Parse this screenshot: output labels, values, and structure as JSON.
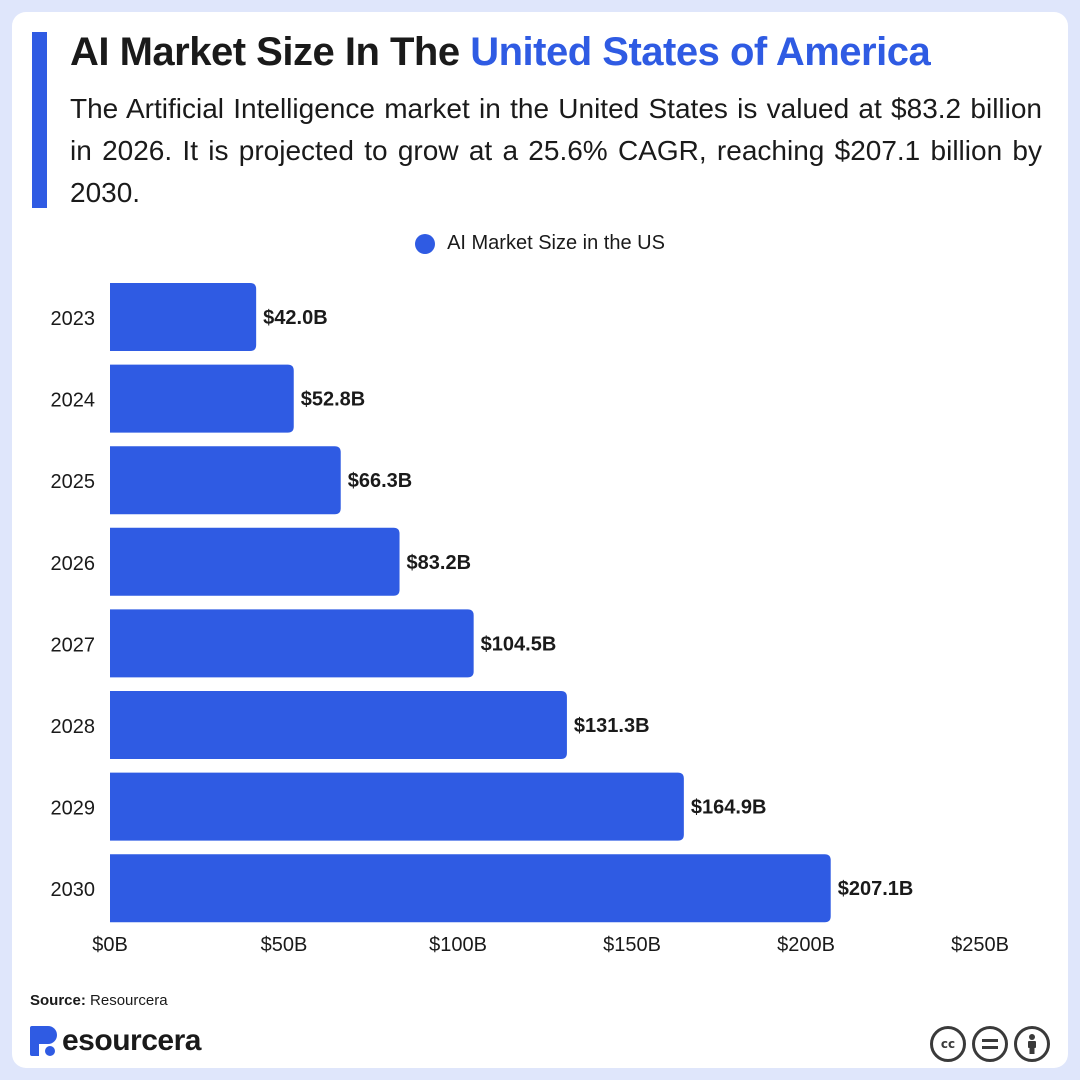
{
  "header": {
    "title_prefix": "AI Market Size In The ",
    "title_highlight": "United States of America",
    "subtitle": "The Artificial Intelligence market in the United States is valued at $83.2 billion in 2026. It is projected to grow at a 25.6% CAGR, reaching $207.1 billion by 2030."
  },
  "colors": {
    "accent": "#2f5be3",
    "bar": "#2f5be3",
    "text": "#1a1a1a"
  },
  "chart_data": {
    "type": "bar",
    "orientation": "horizontal",
    "categories": [
      "2023",
      "2024",
      "2025",
      "2026",
      "2027",
      "2028",
      "2029",
      "2030"
    ],
    "series": [
      {
        "name": "AI Market Size in the US",
        "values": [
          42.0,
          52.8,
          66.3,
          83.2,
          104.5,
          131.3,
          164.9,
          207.1
        ],
        "labels": [
          "$42.0B",
          "$52.8B",
          "$66.3B",
          "$83.2B",
          "$104.5B",
          "$131.3B",
          "$164.9B",
          "$207.1B"
        ]
      }
    ],
    "xlim": [
      0,
      250
    ],
    "xticks": [
      0,
      50,
      100,
      150,
      200,
      250
    ],
    "xtick_labels": [
      "$0B",
      "$50B",
      "$100B",
      "$150B",
      "$200B",
      "$250B"
    ],
    "grid": false,
    "legend_position": "top-center"
  },
  "footer": {
    "source_label": "Source:",
    "source_value": " Resourcera",
    "brand": "esourcera",
    "license_icons": [
      "cc-icon",
      "equals-icon",
      "person-icon"
    ]
  }
}
